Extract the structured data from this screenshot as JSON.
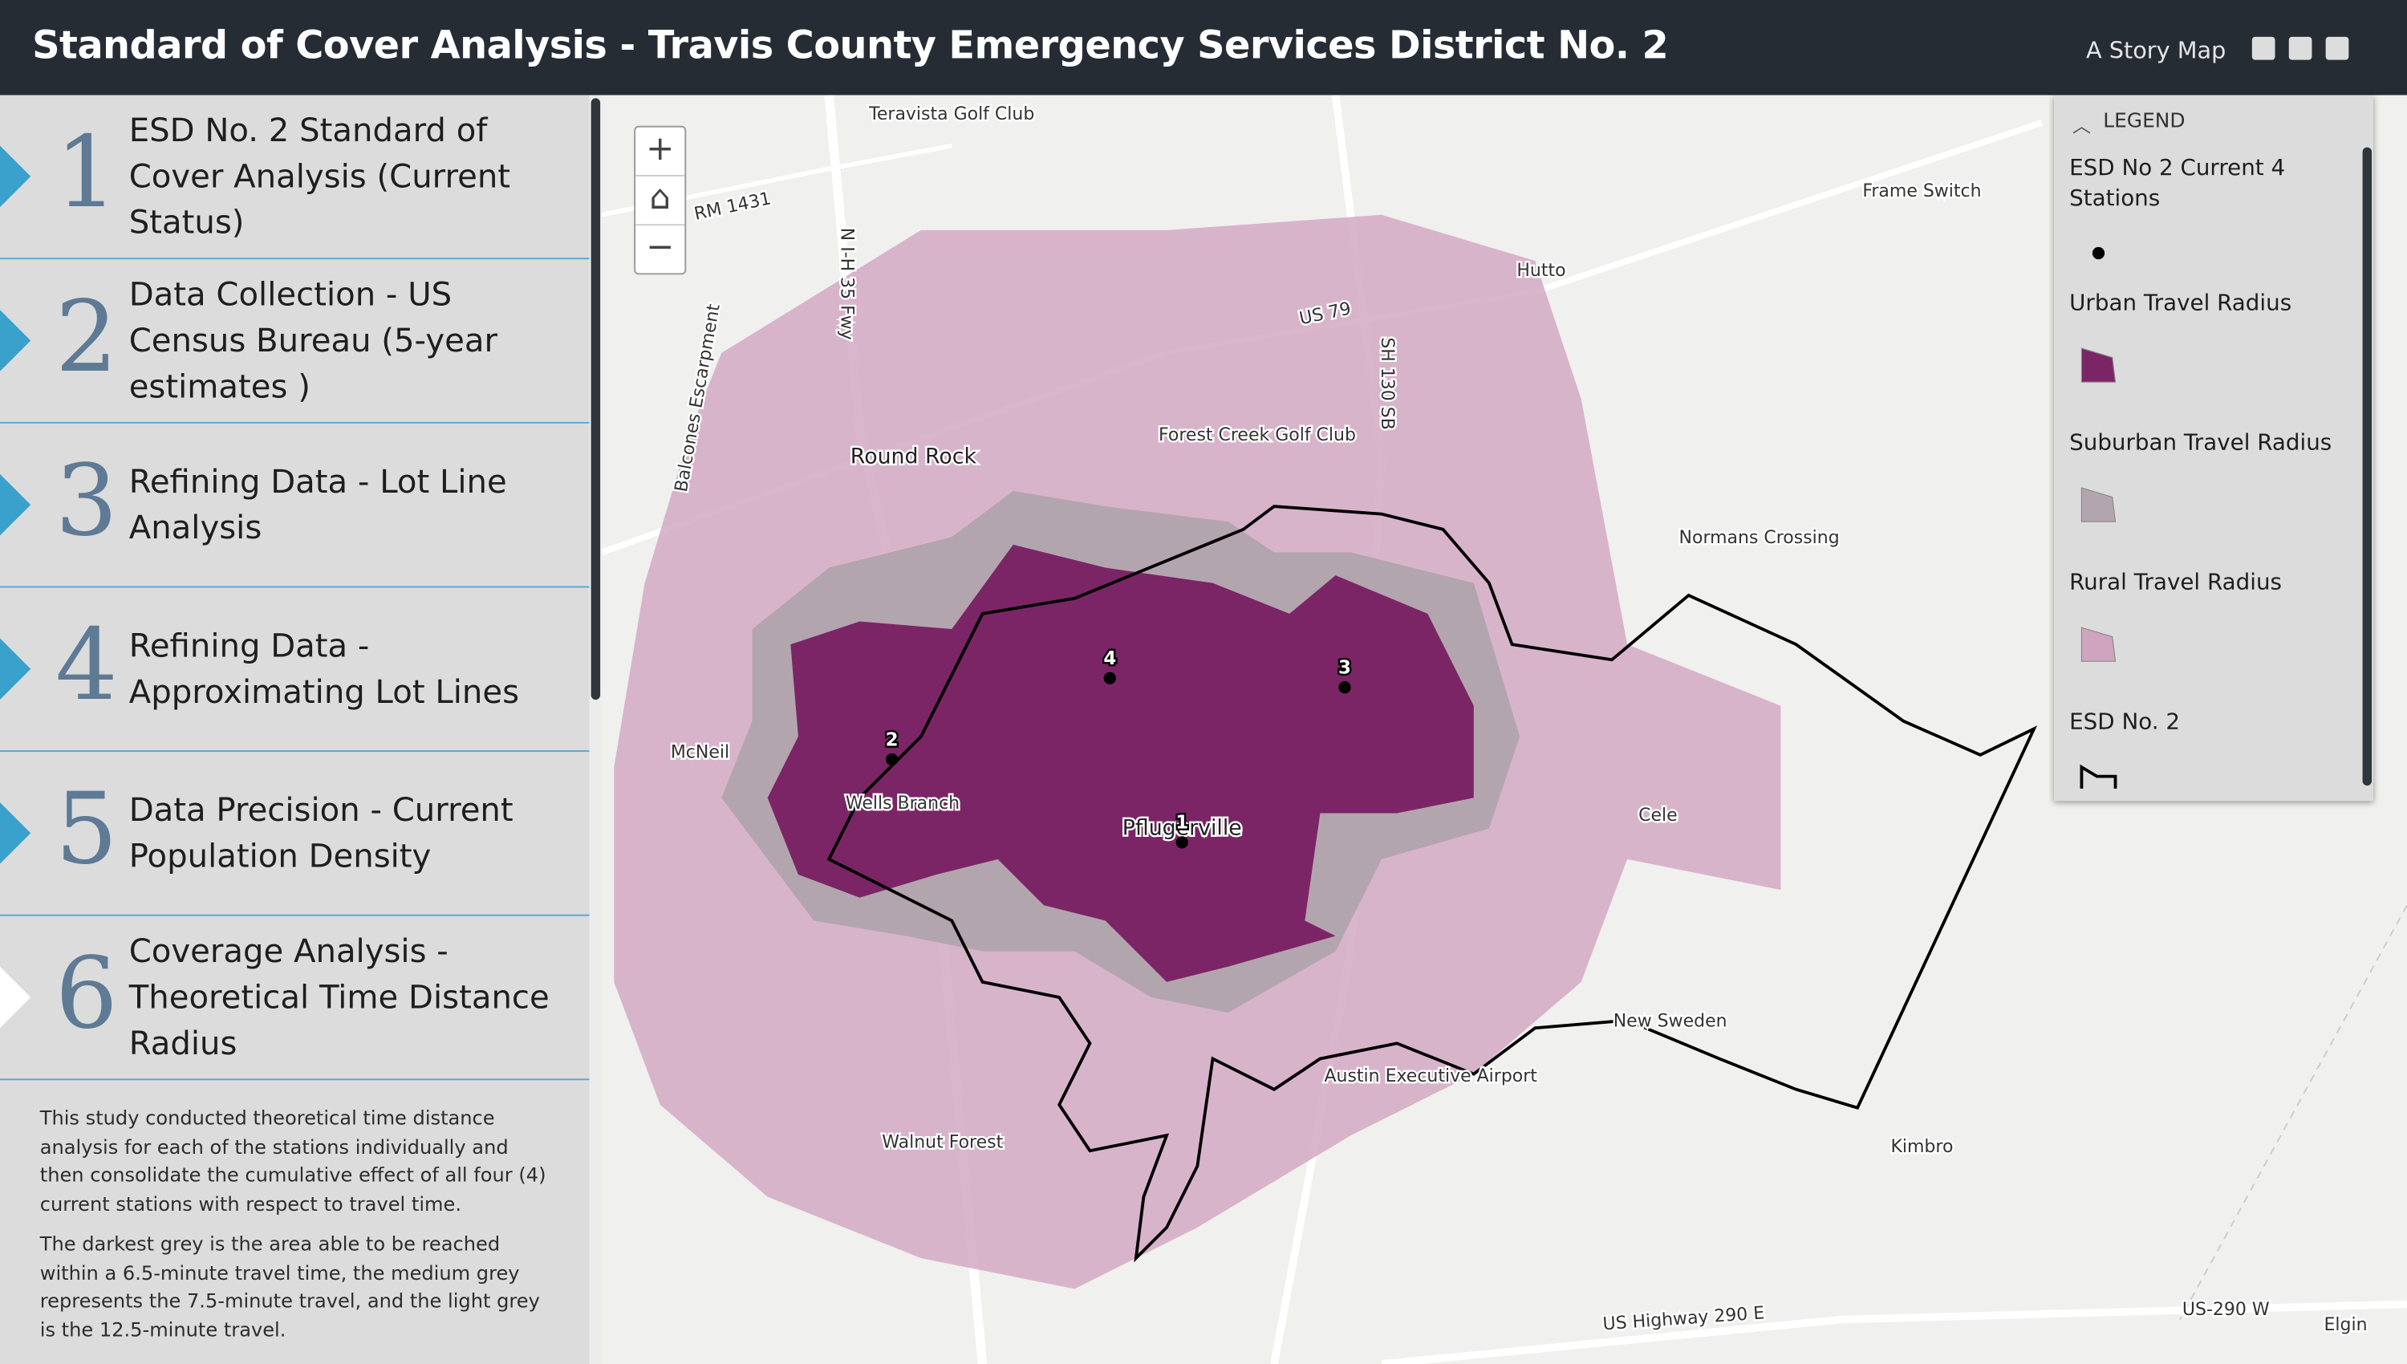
{
  "header": {
    "title": "Standard of Cover Analysis - Travis County Emergency Services District No. 2",
    "subtitle": "A Story Map"
  },
  "sidebar": {
    "items": [
      {
        "number": "1",
        "title": "ESD No. 2 Standard of Cover Analysis (Current Status)"
      },
      {
        "number": "2",
        "title": "Data Collection - US Census Bureau (5-year estimates )"
      },
      {
        "number": "3",
        "title": "Refining Data - Lot Line Analysis"
      },
      {
        "number": "4",
        "title": "Refining Data - Approximating Lot Lines"
      },
      {
        "number": "5",
        "title": "Data Precision - Current Population Density"
      },
      {
        "number": "6",
        "title": "Coverage Analysis - Theoretical Time Distance Radius"
      }
    ],
    "paragraphs": [
      "This study conducted theoretical time distance analysis for each of the stations individually and then consolidate the cumulative effect of all four (4) current stations with respect to travel time.",
      "The darkest grey is the area able to be reached within a 6.5-minute travel time, the medium grey represents the 7.5-minute travel, and the light grey is the 12.5-minute travel."
    ]
  },
  "legend": {
    "title": "LEGEND",
    "items": [
      {
        "label": "ESD No 2 Current 4 Stations"
      },
      {
        "label": "Urban Travel Radius"
      },
      {
        "label": "Suburban Travel Radius"
      },
      {
        "label": "Rural Travel Radius"
      },
      {
        "label": "ESD No. 2"
      }
    ]
  },
  "map": {
    "labels": [
      "Round Rock",
      "Hutto",
      "Frame Switch",
      "Normans Crossing",
      "McNeil",
      "Pflugerville",
      "Wells Branch",
      "Cele",
      "New Sweden",
      "Walnut Forest",
      "Kimbro",
      "Elgin",
      "Austin Executive Airport",
      "Forest Creek Golf Club",
      "Teravista Golf Club",
      "US 79",
      "RM 1431",
      "US Highway 290 E",
      "US-290 W",
      "Balcones Escarpment",
      "N I-H 35 Fwy",
      "SH 130 SB"
    ],
    "stations": [
      "1",
      "2",
      "3",
      "4"
    ]
  }
}
